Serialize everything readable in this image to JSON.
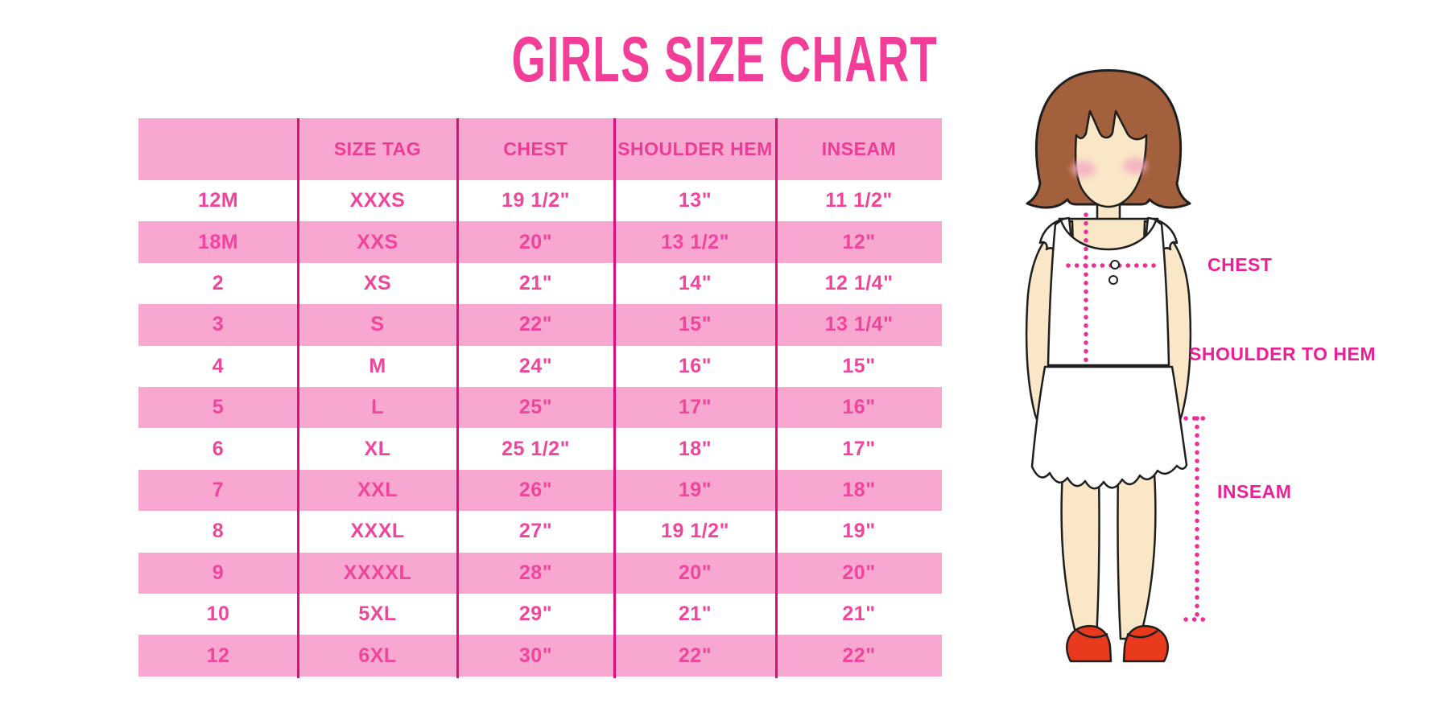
{
  "title": "GIRLS SIZE CHART",
  "chart_data": {
    "type": "table",
    "title": "GIRLS SIZE CHART",
    "columns": [
      "",
      "SIZE TAG",
      "CHEST",
      "SHOULDER HEM",
      "INSEAM"
    ],
    "rows": [
      [
        "12M",
        "XXXS",
        "19 1/2\"",
        "13\"",
        "11 1/2\""
      ],
      [
        "18M",
        "XXS",
        "20\"",
        "13 1/2\"",
        "12\""
      ],
      [
        "2",
        "XS",
        "21\"",
        "14\"",
        "12 1/4\""
      ],
      [
        "3",
        "S",
        "22\"",
        "15\"",
        "13 1/4\""
      ],
      [
        "4",
        "M",
        "24\"",
        "16\"",
        "15\""
      ],
      [
        "5",
        "L",
        "25\"",
        "17\"",
        "16\""
      ],
      [
        "6",
        "XL",
        "25 1/2\"",
        "18\"",
        "17\""
      ],
      [
        "7",
        "XXL",
        "26\"",
        "19\"",
        "18\""
      ],
      [
        "8",
        "XXXL",
        "27\"",
        "19 1/2\"",
        "19\""
      ],
      [
        "9",
        "XXXXL",
        "28\"",
        "20\"",
        "20\""
      ],
      [
        "10",
        "5XL",
        "29\"",
        "21\"",
        "21\""
      ],
      [
        "12",
        "6XL",
        "30\"",
        "22\"",
        "22\""
      ]
    ],
    "layout": {
      "striping": "alternating white and pink rows, pink header",
      "grid": "vertical magenta column dividers only, no outer border"
    }
  },
  "diagram": {
    "labels": {
      "chest": "CHEST",
      "shoulder_to_hem": "SHOULDER TO HEM",
      "inseam": "INSEAM"
    }
  },
  "colors": {
    "title_pink": "#F23E98",
    "row_pink": "#F8A7D0",
    "cell_text_pink": "#F0459C",
    "divider_magenta": "#DF0C7D",
    "label_magenta": "#ED1E96",
    "dotted_line_magenta": "#EE2D96",
    "hair_brown": "#A2603C",
    "skin_peach": "#FAE7C7",
    "shoe_red": "#E93A1E"
  }
}
